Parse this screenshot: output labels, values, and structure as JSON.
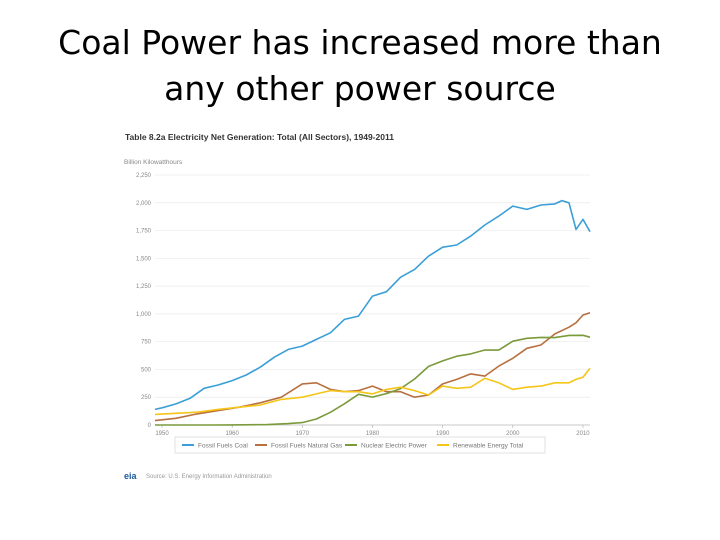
{
  "slide": {
    "title_line1": "Coal Power has increased more than",
    "title_line2": "any other power source"
  },
  "chart_data": {
    "type": "line",
    "title": "Table 8.2a Electricity Net Generation: Total (All Sectors), 1949-2011",
    "ylabel": "Billion Kilowatthours",
    "ylim": [
      0,
      2250
    ],
    "yticks": [
      0,
      250,
      500,
      750,
      1000,
      1250,
      1500,
      1750,
      2000,
      2250
    ],
    "ytick_labels": [
      "0",
      "250",
      "500",
      "750",
      "1,000",
      "1,250",
      "1,500",
      "1,750",
      "2,000",
      "2,250"
    ],
    "xlim": [
      1949,
      2011
    ],
    "xticks": [
      1950,
      1960,
      1970,
      1980,
      1990,
      2000,
      2010
    ],
    "xtick_labels": [
      "1950",
      "1960",
      "1970",
      "1980",
      "1990",
      "2000",
      "2010"
    ],
    "grid": true,
    "legend_position": "bottom",
    "source": "Source: U.S. Energy Information Administration",
    "logo_text": "eia",
    "series": [
      {
        "name": "Fossil Fuels Coal",
        "color": "#3a9fd8",
        "x": [
          1949,
          1950,
          1952,
          1954,
          1956,
          1958,
          1960,
          1962,
          1964,
          1966,
          1968,
          1970,
          1972,
          1974,
          1976,
          1978,
          1980,
          1982,
          1984,
          1986,
          1988,
          1990,
          1992,
          1994,
          1996,
          1998,
          2000,
          2002,
          2004,
          2006,
          2007,
          2008,
          2009,
          2010,
          2011
        ],
        "y": [
          140,
          155,
          190,
          240,
          330,
          360,
          400,
          450,
          520,
          610,
          680,
          710,
          770,
          830,
          950,
          980,
          1160,
          1200,
          1330,
          1400,
          1520,
          1600,
          1620,
          1700,
          1800,
          1880,
          1970,
          1940,
          1980,
          1990,
          2020,
          2000,
          1760,
          1850,
          1740
        ]
      },
      {
        "name": "Fossil Fuels Natural Gas",
        "color": "#b87040",
        "x": [
          1949,
          1952,
          1955,
          1958,
          1961,
          1964,
          1967,
          1970,
          1972,
          1974,
          1976,
          1978,
          1980,
          1982,
          1984,
          1986,
          1988,
          1990,
          1992,
          1994,
          1996,
          1998,
          2000,
          2002,
          2004,
          2006,
          2008,
          2009,
          2010,
          2011
        ],
        "y": [
          40,
          60,
          100,
          130,
          160,
          200,
          250,
          370,
          380,
          320,
          300,
          310,
          350,
          300,
          300,
          250,
          270,
          370,
          410,
          460,
          440,
          530,
          600,
          690,
          720,
          820,
          880,
          920,
          990,
          1010
        ]
      },
      {
        "name": "Nuclear Electric Power",
        "color": "#7a9a3c",
        "x": [
          1949,
          1957,
          1960,
          1965,
          1968,
          1970,
          1972,
          1974,
          1976,
          1978,
          1980,
          1982,
          1984,
          1986,
          1988,
          1990,
          1992,
          1994,
          1996,
          1998,
          2000,
          2002,
          2004,
          2006,
          2008,
          2010,
          2011
        ],
        "y": [
          0,
          0,
          1,
          4,
          13,
          22,
          54,
          114,
          191,
          276,
          251,
          283,
          328,
          414,
          527,
          577,
          619,
          640,
          675,
          674,
          754,
          780,
          788,
          787,
          806,
          807,
          790
        ]
      },
      {
        "name": "Renewable Energy Total",
        "color": "#f5c518",
        "x": [
          1949,
          1952,
          1955,
          1958,
          1961,
          1964,
          1967,
          1970,
          1972,
          1974,
          1976,
          1978,
          1980,
          1982,
          1984,
          1986,
          1988,
          1990,
          1992,
          1994,
          1996,
          1998,
          2000,
          2002,
          2004,
          2006,
          2008,
          2009,
          2010,
          2011
        ],
        "y": [
          95,
          105,
          115,
          140,
          160,
          180,
          230,
          250,
          280,
          310,
          300,
          300,
          280,
          320,
          340,
          310,
          270,
          350,
          330,
          340,
          420,
          380,
          320,
          340,
          350,
          380,
          380,
          410,
          430,
          510
        ]
      }
    ]
  }
}
